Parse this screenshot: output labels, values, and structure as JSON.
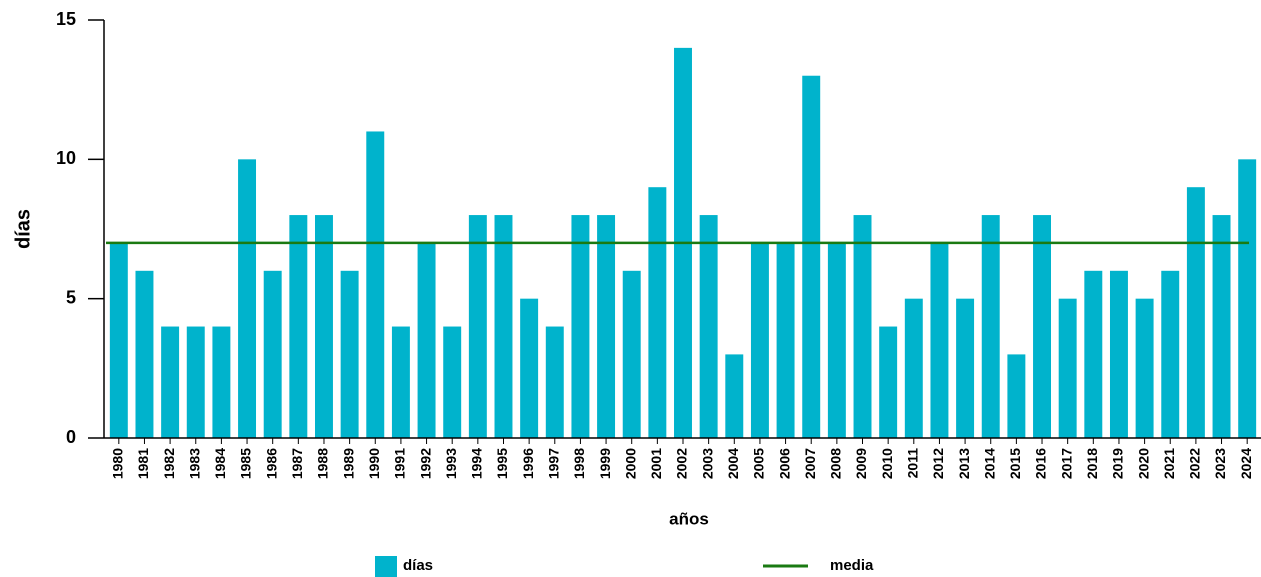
{
  "chart_data": {
    "type": "bar",
    "x_label": "años",
    "y_label": "días",
    "categories": [
      "1980",
      "1981",
      "1982",
      "1983",
      "1984",
      "1985",
      "1986",
      "1987",
      "1988",
      "1989",
      "1990",
      "1991",
      "1992",
      "1993",
      "1994",
      "1995",
      "1996",
      "1997",
      "1998",
      "1999",
      "2000",
      "2001",
      "2002",
      "2003",
      "2004",
      "2005",
      "2006",
      "2007",
      "2008",
      "2009",
      "2010",
      "2011",
      "2012",
      "2013",
      "2014",
      "2015",
      "2016",
      "2017",
      "2018",
      "2019",
      "2020",
      "2021",
      "2022",
      "2023",
      "2024"
    ],
    "series": [
      {
        "name": "días",
        "color": "#00b3cc",
        "values": [
          7,
          6,
          4,
          4,
          4,
          10,
          6,
          8,
          8,
          6,
          11,
          4,
          7,
          4,
          8,
          8,
          5,
          4,
          8,
          8,
          6,
          9,
          14,
          8,
          3,
          7,
          7,
          13,
          7,
          8,
          4,
          5,
          7,
          5,
          8,
          3,
          8,
          5,
          6,
          6,
          5,
          6,
          9,
          8,
          10
        ]
      }
    ],
    "mean": {
      "name": "media",
      "value": 7,
      "color": "#1a7a12"
    },
    "ylim": [
      0,
      15
    ],
    "yticks": [
      0,
      5,
      10,
      15
    ]
  }
}
